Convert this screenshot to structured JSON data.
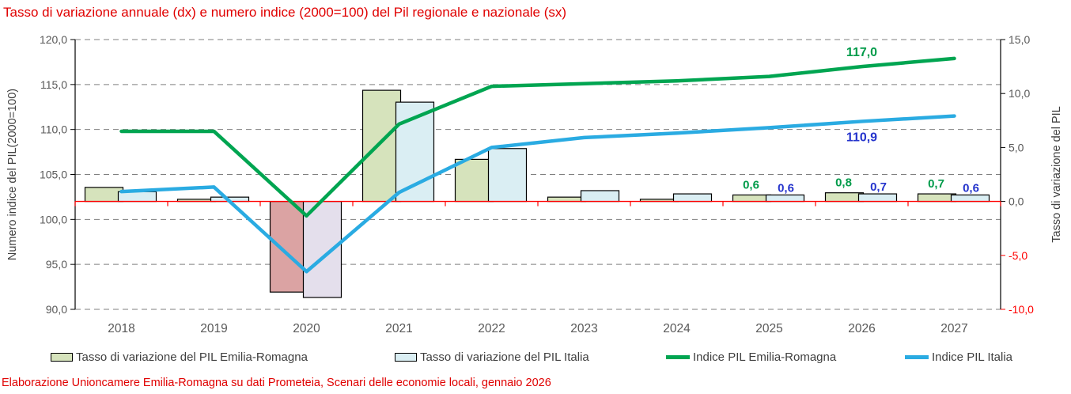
{
  "title": "Tasso di variazione annuale (dx) e numero indice (2000=100) del Pil regionale e nazionale (sx)",
  "footer": "Elaborazione Unioncamere Emilia-Romagna su dati Prometeia, Scenari delle economie locali, gennaio 2026",
  "colors": {
    "title_red": "#e00000",
    "zero_line_red": "#ff0000",
    "negative_tick_red": "#ff0000",
    "grid": "#7f7f7f",
    "axis_line": "#000000",
    "tick_text": "#595959",
    "axis_title_text": "#404040",
    "bar_border": "#000000"
  },
  "left_axis": {
    "title": "Numero indice del PIL(2000=100)",
    "min": 90,
    "max": 120,
    "step": 5
  },
  "right_axis": {
    "title": "Tasso di variazione  del PIL",
    "min": -10,
    "max": 15,
    "step": 5
  },
  "legend": {
    "items": [
      {
        "label": "Tasso di variazione del PIL Emilia-Romagna",
        "swatch": "bar",
        "color": "#d6e3bc"
      },
      {
        "label": "Tasso di variazione del PIL Italia",
        "swatch": "bar",
        "color": "#daeef3"
      },
      {
        "label": "Indice PIL Emilia-Romagna",
        "swatch": "line",
        "color": "#00a551"
      },
      {
        "label": "Indice PIL Italia",
        "swatch": "line",
        "color": "#2aabe2"
      }
    ]
  },
  "chart_data": {
    "type": "combo",
    "categories": [
      "2018",
      "2019",
      "2020",
      "2021",
      "2022",
      "2023",
      "2024",
      "2025",
      "2026",
      "2027"
    ],
    "series": [
      {
        "name": "Tasso di variazione del PIL Emilia-Romagna",
        "type": "bar",
        "axis": "right",
        "fill_pos": "#d6e3bc",
        "fill_neg": "#dba3a3",
        "label_color": "#009b4a",
        "values": [
          1.3,
          0.2,
          -8.4,
          10.3,
          3.9,
          0.4,
          0.2,
          0.6,
          0.8,
          0.7
        ],
        "value_labels": [
          null,
          null,
          null,
          null,
          null,
          null,
          null,
          "0,6",
          "0,8",
          "0,7"
        ]
      },
      {
        "name": "Tasso di variazione del PIL Italia",
        "type": "bar",
        "axis": "right",
        "fill_pos": "#daeef3",
        "fill_neg": "#e4dfec",
        "label_color": "#2433cc",
        "values": [
          0.9,
          0.4,
          -8.9,
          9.2,
          4.9,
          1.0,
          0.7,
          0.6,
          0.7,
          0.6
        ],
        "value_labels": [
          null,
          null,
          null,
          null,
          null,
          null,
          null,
          "0,6",
          "0,7",
          "0,6"
        ]
      },
      {
        "name": "Indice PIL Emilia-Romagna",
        "type": "line",
        "axis": "left",
        "stroke": "#00a551",
        "values": [
          109.8,
          109.8,
          100.4,
          110.6,
          114.8,
          115.1,
          115.4,
          115.9,
          117.0,
          117.9
        ]
      },
      {
        "name": "Indice PIL Italia",
        "type": "line",
        "axis": "left",
        "stroke": "#2aabe2",
        "values": [
          103.1,
          103.6,
          94.2,
          103.0,
          108.0,
          109.1,
          109.6,
          110.2,
          110.9,
          111.5
        ]
      }
    ],
    "annotations": [
      {
        "text": "117,0",
        "series": "Indice PIL Emilia-Romagna",
        "category": "2026",
        "placement": "above",
        "color": "#009b4a"
      },
      {
        "text": "110,9",
        "series": "Indice PIL Italia",
        "category": "2026",
        "placement": "below",
        "color": "#2433cc"
      }
    ],
    "layout_hints": {
      "grid": "dashed-horizontal",
      "legend_position": "bottom",
      "zero_line_axis": "right"
    }
  }
}
